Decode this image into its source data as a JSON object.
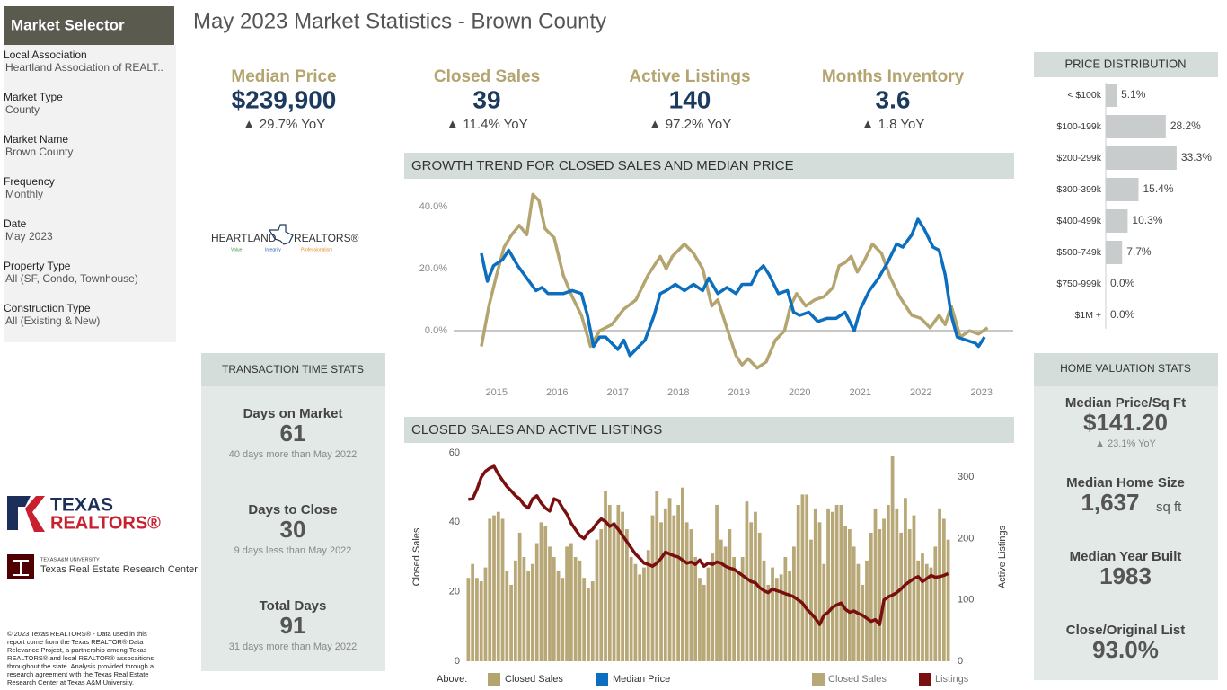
{
  "sidebar": {
    "title": "Market Selector",
    "filters": [
      {
        "label": "Local Association",
        "value": "Heartland Association of REALT.."
      },
      {
        "label": "Market Type",
        "value": "County"
      },
      {
        "label": "Market Name",
        "value": "Brown County"
      },
      {
        "label": "Frequency",
        "value": "Monthly"
      },
      {
        "label": "Date",
        "value": "May 2023"
      },
      {
        "label": "Property Type",
        "value": "All (SF, Condo, Townhouse)"
      },
      {
        "label": "Construction Type",
        "value": "All (Existing & New)"
      }
    ]
  },
  "header": {
    "title": "May 2023 Market Statistics - Brown County"
  },
  "kpis": [
    {
      "label": "Median Price",
      "value": "$239,900",
      "change": "▲ 29.7% YoY"
    },
    {
      "label": "Closed Sales",
      "value": "39",
      "change": "▲ 11.4% YoY"
    },
    {
      "label": "Active Listings",
      "value": "140",
      "change": "▲ 97.2% YoY"
    },
    {
      "label": "Months Inventory",
      "value": "3.6",
      "change": "▲ 1.8 YoY"
    }
  ],
  "logos": {
    "heartland": "HEARTLAND",
    "realtors": "REALTORS®",
    "tagline": [
      "Value",
      "Integrity",
      "Professionalism"
    ],
    "texas_realtors": [
      "TEXAS",
      "REALTORS®"
    ],
    "tamu": "TEXAS A&M UNIVERSITY",
    "trerc": "Texas Real Estate Research Center"
  },
  "copyright": [
    "© 2023 Texas REALTORS® - Data used in this",
    "report come from the Texas REALTOR® Data",
    "Relevance Project, a partnership among Texas",
    "REALTORS® and local REALTOR® assocaitions",
    "throughout the state. Analysis provided through a",
    "research agreement with the Texas Real Estate",
    "Research Center at Texas A&M University."
  ],
  "transaction_stats": {
    "title": "TRANSACTION TIME STATS",
    "items": [
      {
        "label": "Days on Market",
        "value": "61",
        "note": "40 days more than May 2022"
      },
      {
        "label": "Days to Close",
        "value": "30",
        "note": "9 days less than May 2022"
      },
      {
        "label": "Total Days",
        "value": "91",
        "note": "31 days more than May 2022"
      }
    ]
  },
  "home_valuation": {
    "title": "HOME VALUATION STATS",
    "items": [
      {
        "label": "Median Price/Sq Ft",
        "value": "$141.20",
        "change": "▲ 23.1% YoY"
      },
      {
        "label": "Median Home Size",
        "value": "1,637",
        "unit": "sq ft"
      },
      {
        "label": "Median Year Built",
        "value": "1983"
      },
      {
        "label": "Close/Original List",
        "value": "93.0%"
      }
    ]
  },
  "chart_data": [
    {
      "type": "hbar",
      "title": "PRICE DISTRIBUTION",
      "categories": [
        "< $100k",
        "$100-199k",
        "$200-299k",
        "$300-399k",
        "$400-499k",
        "$500-749k",
        "$750-999k",
        "$1M +"
      ],
      "values": [
        5.1,
        28.2,
        33.3,
        15.4,
        10.3,
        7.7,
        0,
        0
      ],
      "value_labels": [
        "5.1%",
        "28.2%",
        "33.3%",
        "15.4%",
        "10.3%",
        "7.7%",
        "0.0%",
        "0.0%"
      ],
      "color": "#c9cccc"
    },
    {
      "type": "line",
      "title": "GROWTH TREND FOR CLOSED SALES AND MEDIAN PRICE",
      "xlim": [
        2014.5,
        2023.3
      ],
      "xticks": [
        2015,
        2016,
        2017,
        2018,
        2019,
        2020,
        2021,
        2022,
        2023
      ],
      "ylim": [
        -15,
        48
      ],
      "yticks": [
        {
          "value": 0,
          "label": "0.0%"
        },
        {
          "value": 20,
          "label": "20.0%"
        },
        {
          "value": 40,
          "label": "40.0%"
        }
      ],
      "zero_line": true,
      "legend_title": "Above:",
      "series": [
        {
          "name": "Closed Sales",
          "color": "#b4a46f",
          "x": [
            2014.75,
            2014.875,
            2015,
            2015.125,
            2015.25,
            2015.375,
            2015.5,
            2015.6,
            2015.7,
            2015.8,
            2015.95,
            2016.1,
            2016.25,
            2016.4,
            2016.55,
            2016.7,
            2016.9,
            2017.1,
            2017.3,
            2017.5,
            2017.7,
            2017.8,
            2017.9,
            2018,
            2018.1,
            2018.25,
            2018.4,
            2018.55,
            2018.65,
            2018.8,
            2018.95,
            2019.05,
            2019.15,
            2019.3,
            2019.45,
            2019.6,
            2019.75,
            2019.85,
            2019.95,
            2020.1,
            2020.25,
            2020.4,
            2020.55,
            2020.65,
            2020.75,
            2020.85,
            2020.95,
            2021.05,
            2021.2,
            2021.35,
            2021.5,
            2021.65,
            2021.85,
            2022,
            2022.15,
            2022.3,
            2022.4,
            2022.5,
            2022.65,
            2022.8,
            2022.95,
            2023.1
          ],
          "values": [
            -5,
            8,
            18,
            27,
            31,
            34,
            31,
            44,
            42,
            33,
            30,
            18,
            11,
            5,
            -5,
            0,
            2,
            7,
            10,
            18,
            24,
            20,
            24,
            26,
            28,
            25,
            20,
            8,
            10,
            1,
            -8,
            -11,
            -9,
            -12,
            -10,
            -3,
            0,
            8,
            12,
            8,
            10,
            11,
            14,
            21,
            22,
            24,
            19,
            22,
            28,
            25,
            17,
            11,
            5,
            4,
            1,
            5,
            2,
            8,
            -2,
            0,
            -1,
            1
          ]
        },
        {
          "name": "Median Price",
          "color": "#0b6ebf",
          "x": [
            2014.75,
            2014.85,
            2014.95,
            2015.1,
            2015.2,
            2015.35,
            2015.5,
            2015.65,
            2015.75,
            2015.85,
            2015.95,
            2016.1,
            2016.25,
            2016.4,
            2016.5,
            2016.6,
            2016.7,
            2016.8,
            2016.9,
            2017,
            2017.1,
            2017.2,
            2017.3,
            2017.45,
            2017.6,
            2017.7,
            2017.8,
            2017.95,
            2018.1,
            2018.25,
            2018.4,
            2018.5,
            2018.65,
            2018.8,
            2018.95,
            2019.05,
            2019.2,
            2019.3,
            2019.4,
            2019.5,
            2019.65,
            2019.8,
            2019.9,
            2020,
            2020.15,
            2020.3,
            2020.45,
            2020.6,
            2020.75,
            2020.9,
            2021,
            2021.15,
            2021.3,
            2021.45,
            2021.6,
            2021.7,
            2021.85,
            2021.95,
            2022.05,
            2022.2,
            2022.3,
            2022.4,
            2022.5,
            2022.6,
            2022.75,
            2022.9,
            2022.95,
            2023.05
          ],
          "values": [
            25,
            16,
            21,
            23,
            26,
            21,
            17,
            13,
            14,
            12,
            12,
            12,
            13,
            12,
            5,
            -5,
            -2,
            -2,
            -4,
            -6,
            -3,
            -8,
            -6,
            -3,
            5,
            12,
            13,
            15,
            13,
            15,
            13,
            17,
            12,
            14,
            12,
            15,
            15,
            19,
            21,
            18,
            12,
            13,
            6,
            5,
            6,
            3,
            4,
            4,
            6,
            0,
            7,
            13,
            17,
            22,
            28,
            27,
            31,
            36,
            33,
            27,
            26,
            18,
            5,
            -2,
            -3,
            -4,
            -5,
            -2
          ]
        }
      ]
    },
    {
      "type": "bar_line",
      "title": "CLOSED SALES AND ACTIVE LISTINGS",
      "categories": [
        null,
        null,
        null,
        null,
        null,
        null,
        null,
        null,
        null,
        null,
        null,
        null,
        null,
        null,
        null,
        null,
        null,
        null,
        null,
        null,
        null,
        null,
        null,
        null,
        null,
        null,
        null,
        null,
        null,
        null,
        null,
        null,
        null,
        null,
        null,
        null,
        null,
        null,
        null,
        null,
        null,
        null,
        null,
        null,
        null,
        null,
        null,
        null,
        null,
        null,
        null,
        null,
        null,
        null,
        null,
        null,
        null,
        null,
        null,
        null,
        null,
        null,
        null,
        null,
        null,
        null,
        null,
        null,
        null,
        null,
        null,
        null,
        null,
        null,
        null,
        null,
        null,
        null,
        null,
        null,
        null,
        null,
        null,
        null,
        null,
        null,
        null,
        null,
        null,
        null,
        null,
        null,
        null,
        null,
        null,
        null,
        null,
        null,
        null,
        null,
        null,
        null,
        null,
        null,
        null,
        null,
        null,
        null,
        null,
        null,
        null,
        null,
        null
      ],
      "ylim": [
        0,
        60
      ],
      "yticks": [
        0,
        20,
        40,
        60
      ],
      "y2lim": [
        0,
        340
      ],
      "y2ticks": [
        0,
        100,
        200,
        300
      ],
      "ylabel": "Closed Sales",
      "y2label": "Active Listings",
      "series": [
        {
          "name": "Closed Sales",
          "color": "#b8a878",
          "values": [
            24,
            28,
            24,
            23,
            27,
            41,
            42,
            43,
            41,
            26,
            22,
            29,
            37,
            30,
            26,
            28,
            34,
            40,
            39,
            33,
            30,
            26,
            24,
            33,
            34,
            30,
            29,
            24,
            21,
            23,
            35,
            38,
            49,
            45,
            40,
            45,
            43,
            38,
            30,
            28,
            25,
            27,
            32,
            42,
            49,
            40,
            44,
            47,
            42,
            45,
            50,
            40,
            38,
            30,
            24,
            22,
            27,
            31,
            45,
            35,
            33,
            38,
            30,
            26,
            30,
            46,
            40,
            43,
            37,
            29,
            22,
            27,
            24,
            25,
            30,
            26,
            33,
            45,
            48,
            48,
            35,
            44,
            40,
            28,
            44,
            43,
            45,
            45,
            39,
            38,
            33,
            28,
            22,
            29,
            37,
            44,
            38,
            41,
            45,
            59,
            44,
            37,
            47,
            38,
            42,
            29,
            31,
            28,
            27,
            33,
            44,
            41,
            35
          ]
        },
        {
          "name": "Listings",
          "color": "#7a0f0f",
          "axis": "y2",
          "values": [
            264,
            265,
            280,
            300,
            310,
            315,
            318,
            305,
            295,
            285,
            278,
            270,
            265,
            255,
            250,
            265,
            270,
            258,
            250,
            245,
            265,
            262,
            250,
            240,
            225,
            215,
            205,
            200,
            210,
            215,
            225,
            232,
            228,
            220,
            224,
            215,
            205,
            195,
            185,
            175,
            168,
            160,
            158,
            155,
            160,
            168,
            178,
            175,
            172,
            170,
            165,
            160,
            162,
            158,
            165,
            155,
            160,
            158,
            162,
            160,
            155,
            152,
            150,
            145,
            140,
            135,
            130,
            128,
            120,
            115,
            112,
            118,
            115,
            113,
            110,
            108,
            105,
            100,
            95,
            85,
            78,
            70,
            60,
            75,
            80,
            88,
            92,
            95,
            85,
            80,
            82,
            78,
            75,
            70,
            65,
            68,
            60,
            100,
            105,
            108,
            112,
            118,
            125,
            130,
            135,
            138,
            130,
            135,
            140,
            137,
            138,
            140,
            143
          ]
        }
      ]
    }
  ]
}
